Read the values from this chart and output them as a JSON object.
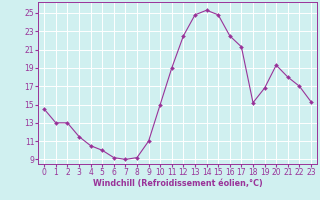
{
  "x": [
    0,
    1,
    2,
    3,
    4,
    5,
    6,
    7,
    8,
    9,
    10,
    11,
    12,
    13,
    14,
    15,
    16,
    17,
    18,
    19,
    20,
    21,
    22,
    23
  ],
  "y": [
    14.5,
    13.0,
    13.0,
    11.5,
    10.5,
    10.0,
    9.2,
    9.0,
    9.2,
    11.0,
    15.0,
    19.0,
    22.5,
    24.8,
    25.3,
    24.8,
    22.5,
    21.3,
    15.2,
    16.8,
    19.3,
    18.0,
    17.0,
    15.3
  ],
  "line_color": "#993399",
  "marker_color": "#993399",
  "bg_color": "#d0f0f0",
  "grid_color": "#ffffff",
  "xlabel": "Windchill (Refroidissement éolien,°C)",
  "xlabel_color": "#993399",
  "tick_color": "#993399",
  "ylim": [
    8.5,
    26.2
  ],
  "xlim": [
    -0.5,
    23.5
  ],
  "yticks": [
    9,
    11,
    13,
    15,
    17,
    19,
    21,
    23,
    25
  ],
  "xticks": [
    0,
    1,
    2,
    3,
    4,
    5,
    6,
    7,
    8,
    9,
    10,
    11,
    12,
    13,
    14,
    15,
    16,
    17,
    18,
    19,
    20,
    21,
    22,
    23
  ],
  "tick_fontsize": 5.5,
  "xlabel_fontsize": 5.8
}
